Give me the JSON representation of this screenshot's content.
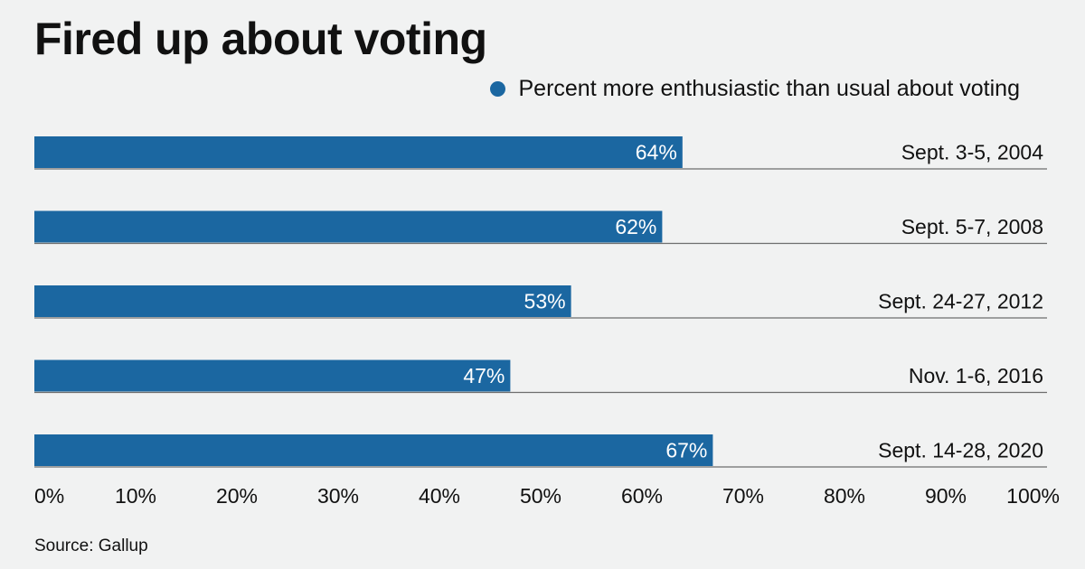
{
  "title": "Fired up about voting",
  "source": "Source: Gallup",
  "colors": {
    "bar": "#1b67a1",
    "baseline": "#6e6e6e",
    "background": "#f1f2f2"
  },
  "chart_data": {
    "type": "bar",
    "orientation": "horizontal",
    "categories": [
      "Sept. 3-5, 2004",
      "Sept. 5-7, 2008",
      "Sept. 24-27, 2012",
      "Nov. 1-6, 2016",
      "Sept. 14-28, 2020"
    ],
    "series": [
      {
        "name": "Percent more enthusiastic than usual about voting",
        "values": [
          64,
          62,
          53,
          47,
          67
        ]
      }
    ],
    "data_labels": [
      "64%",
      "62%",
      "53%",
      "47%",
      "67%"
    ],
    "xlim": [
      0,
      100
    ],
    "x_ticks": [
      "0%",
      "10%",
      "20%",
      "30%",
      "40%",
      "50%",
      "60%",
      "70%",
      "80%",
      "90%",
      "100%"
    ],
    "legend": "top-right",
    "grid": false
  }
}
